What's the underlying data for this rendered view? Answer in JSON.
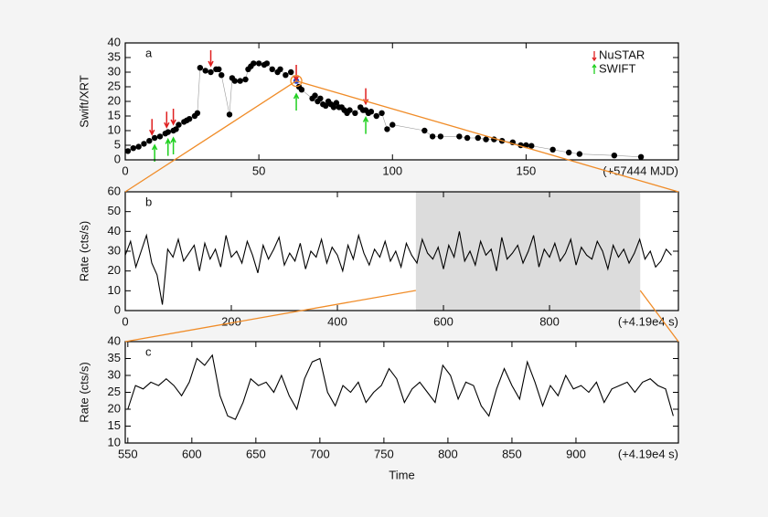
{
  "chart_data": [
    {
      "type": "scatter",
      "label": "a",
      "ylabel": "Swift/XRT",
      "xunit": "(+57444 MJD)",
      "xlim": [
        0,
        207
      ],
      "ylim": [
        0,
        40
      ],
      "xticks": [
        0,
        50,
        100,
        150
      ],
      "yticks": [
        0,
        5,
        10,
        15,
        20,
        25,
        30,
        35,
        40
      ],
      "series": [
        {
          "color": "#000000",
          "x": [
            1,
            3,
            5,
            7,
            9,
            11,
            13,
            15,
            16,
            18,
            19,
            20,
            22,
            23,
            24,
            26,
            27,
            28,
            30,
            32,
            34,
            35,
            36,
            39,
            40,
            41,
            43,
            45,
            46,
            47,
            48,
            50,
            52,
            53,
            55,
            57,
            58,
            60,
            62,
            65,
            66,
            70,
            71,
            72,
            73,
            74,
            75,
            76,
            77,
            78,
            79,
            80,
            81,
            82,
            83,
            84,
            86,
            88,
            89,
            90,
            91,
            92,
            94,
            96,
            98,
            100,
            112,
            115,
            118,
            125,
            128,
            132,
            135,
            138,
            141,
            145,
            148,
            150,
            152,
            160,
            166,
            170,
            183,
            193
          ],
          "values": [
            3,
            4,
            4.5,
            5.5,
            6.5,
            7.5,
            8,
            9,
            9.5,
            10,
            10.5,
            12,
            13,
            13.5,
            14,
            15,
            16,
            31.5,
            30.5,
            30,
            31,
            31,
            29,
            15.5,
            28,
            27,
            27,
            27.5,
            31,
            32,
            33,
            33,
            32.5,
            33,
            31,
            30,
            31,
            29,
            30,
            25,
            24,
            21,
            22,
            20,
            21,
            19,
            18.5,
            20,
            19,
            18,
            19.5,
            18,
            18,
            17,
            16,
            17,
            16,
            18,
            17,
            17,
            16,
            16.5,
            15,
            16,
            10.5,
            12,
            10,
            8,
            8,
            8,
            7.5,
            7.5,
            7,
            7,
            6.5,
            6,
            5,
            5,
            4.8,
            3.5,
            2.5,
            2,
            1.5,
            1
          ]
        },
        {
          "color": "#1f3fd0",
          "x": [
            64
          ],
          "values": [
            27
          ]
        }
      ],
      "markers": [
        {
          "name": "NuSTAR",
          "color": "#e02020",
          "x": [
            10,
            15.5,
            18,
            32,
            64,
            90
          ]
        },
        {
          "name": "SWIFT",
          "color": "#20d020",
          "x": [
            11,
            16,
            18,
            64,
            90
          ]
        }
      ]
    },
    {
      "type": "line",
      "label": "b",
      "ylabel": "Rate (cts/s)",
      "xunit": "(+4.19e4 s)",
      "xlim": [
        0,
        1043
      ],
      "ylim": [
        0,
        60
      ],
      "xticks": [
        0,
        200,
        400,
        600,
        800
      ],
      "yticks": [
        0,
        10,
        20,
        30,
        40,
        50,
        60
      ],
      "highlight_range": [
        548,
        971
      ],
      "series": [
        {
          "color": "#000000",
          "x": [
            0,
            10,
            20,
            30,
            40,
            50,
            60,
            70,
            80,
            90,
            100,
            110,
            120,
            130,
            140,
            150,
            160,
            170,
            180,
            190,
            200,
            210,
            220,
            230,
            240,
            250,
            260,
            270,
            280,
            290,
            300,
            310,
            320,
            330,
            340,
            350,
            360,
            370,
            380,
            390,
            400,
            410,
            420,
            430,
            440,
            450,
            460,
            470,
            480,
            490,
            500,
            510,
            520,
            530,
            540,
            550,
            560,
            570,
            580,
            590,
            600,
            610,
            620,
            630,
            640,
            650,
            660,
            670,
            680,
            690,
            700,
            710,
            720,
            730,
            740,
            750,
            760,
            770,
            780,
            790,
            800,
            810,
            820,
            830,
            840,
            850,
            860,
            870,
            880,
            890,
            900,
            910,
            920,
            930,
            940,
            950,
            960,
            970,
            980,
            990,
            1000,
            1010,
            1020,
            1030
          ],
          "values": [
            28,
            35,
            22,
            30,
            38,
            24,
            18,
            3,
            31,
            27,
            36,
            25,
            29,
            33,
            20,
            34,
            26,
            31,
            22,
            38,
            27,
            30,
            24,
            35,
            28,
            19,
            33,
            26,
            31,
            37,
            23,
            29,
            25,
            34,
            21,
            30,
            27,
            36,
            24,
            32,
            28,
            20,
            33,
            26,
            38,
            29,
            23,
            31,
            27,
            35,
            25,
            30,
            22,
            34,
            28,
            24,
            36,
            29,
            26,
            32,
            21,
            33,
            27,
            40,
            25,
            30,
            23,
            35,
            28,
            31,
            20,
            37,
            26,
            29,
            33,
            24,
            30,
            38,
            22,
            31,
            27,
            34,
            25,
            29,
            36,
            23,
            32,
            28,
            26,
            35,
            30,
            21,
            33,
            27,
            31,
            24,
            29,
            36,
            26,
            30,
            22,
            25,
            31,
            28
          ]
        }
      ]
    },
    {
      "type": "line",
      "label": "c",
      "ylabel": "Rate (cts/s)",
      "xunit": "(+4.19e4 s)",
      "xlabel": "Time",
      "xlim": [
        548,
        980
      ],
      "ylim": [
        10,
        40
      ],
      "xticks": [
        550,
        600,
        650,
        700,
        750,
        800,
        850,
        900
      ],
      "yticks": [
        10,
        15,
        20,
        25,
        30,
        35,
        40
      ],
      "series": [
        {
          "color": "#000000",
          "x": [
            550,
            556,
            562,
            568,
            574,
            580,
            586,
            592,
            598,
            604,
            610,
            616,
            622,
            628,
            634,
            640,
            646,
            652,
            658,
            664,
            670,
            676,
            682,
            688,
            694,
            700,
            706,
            712,
            718,
            724,
            730,
            736,
            742,
            748,
            754,
            760,
            766,
            772,
            778,
            784,
            790,
            796,
            802,
            808,
            814,
            820,
            826,
            832,
            838,
            844,
            850,
            856,
            862,
            868,
            874,
            880,
            886,
            892,
            898,
            904,
            910,
            916,
            922,
            928,
            934,
            940,
            946,
            952,
            958,
            964,
            970,
            976
          ],
          "values": [
            20,
            27,
            26,
            28,
            27,
            29,
            27,
            24,
            28,
            35,
            33,
            36,
            24,
            18,
            17,
            22,
            29,
            27,
            28,
            25,
            30,
            24,
            20,
            29,
            34,
            35,
            25,
            21,
            27,
            25,
            28,
            22,
            25,
            27,
            32,
            29,
            22,
            26,
            28,
            25,
            22,
            33,
            30,
            23,
            28,
            27,
            21,
            18,
            26,
            32,
            27,
            23,
            34,
            28,
            21,
            27,
            24,
            30,
            26,
            27,
            25,
            28,
            22,
            26,
            27,
            28,
            25,
            28,
            29,
            27,
            26,
            18
          ]
        }
      ]
    }
  ]
}
